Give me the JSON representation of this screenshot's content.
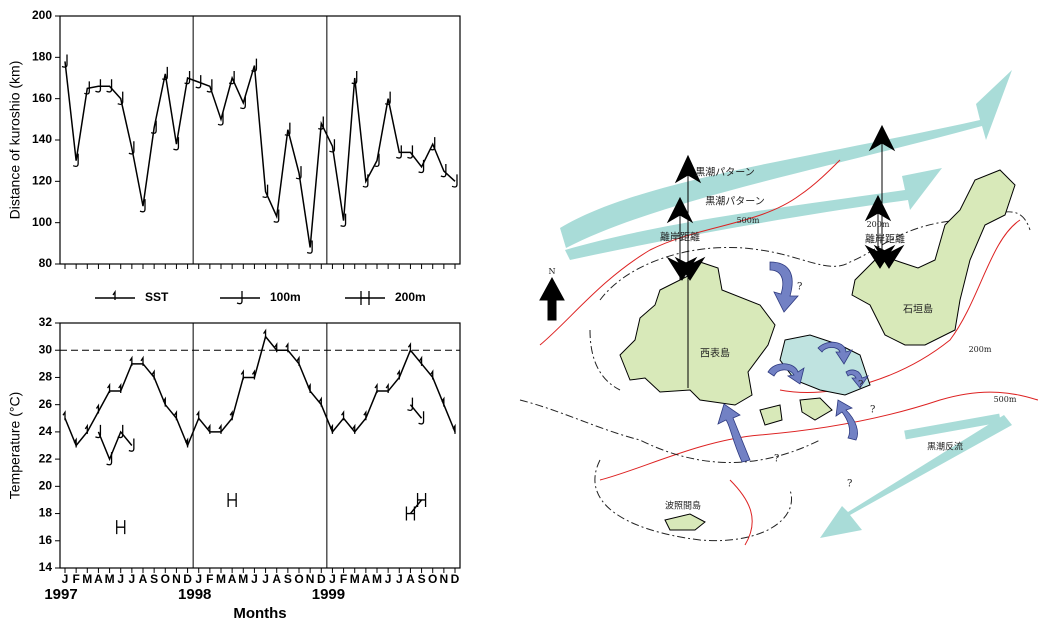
{
  "chart_data": [
    {
      "type": "line",
      "ylabel": "Distance of kuroshio (km)",
      "values": [
        178,
        130,
        165,
        166,
        166,
        160,
        136,
        108,
        146,
        172,
        138,
        170,
        168,
        166,
        150,
        170,
        158,
        176,
        115,
        103,
        145,
        124,
        88,
        148,
        137,
        101,
        170,
        120,
        130,
        160,
        134,
        134,
        127,
        138,
        125,
        120
      ],
      "marker": "J",
      "color": "#000000",
      "ylim": [
        80,
        200
      ],
      "yticks": [
        80,
        100,
        120,
        140,
        160,
        180,
        200
      ]
    },
    {
      "type": "line",
      "ylabel": "Temperature (°C)",
      "xlabel": "Months",
      "categories": [
        "J",
        "F",
        "M",
        "A",
        "M",
        "J",
        "J",
        "A",
        "S",
        "O",
        "N",
        "D",
        "J",
        "F",
        "M",
        "A",
        "M",
        "J",
        "J",
        "A",
        "S",
        "O",
        "N",
        "D",
        "J",
        "F",
        "M",
        "A",
        "M",
        "J",
        "J",
        "A",
        "S",
        "O",
        "N",
        "D"
      ],
      "year_labels": [
        "1997",
        "1998",
        "1999"
      ],
      "series": [
        {
          "name": "SST",
          "marker": "1",
          "color": "#000000",
          "values": [
            25,
            23,
            24,
            25.5,
            27,
            27,
            29,
            29,
            28,
            26,
            25,
            23,
            25,
            24,
            24,
            25,
            28,
            28,
            31,
            30,
            30,
            29,
            27,
            26,
            24,
            25,
            24,
            25,
            27,
            27,
            28,
            30,
            29,
            28,
            26,
            24
          ]
        },
        {
          "name": "100m",
          "marker": "J",
          "color": "#000000",
          "values": [
            null,
            null,
            null,
            24,
            22,
            24,
            23,
            null,
            null,
            null,
            null,
            null,
            null,
            null,
            null,
            null,
            null,
            null,
            null,
            null,
            null,
            null,
            null,
            null,
            null,
            null,
            null,
            null,
            null,
            null,
            null,
            26,
            25,
            null,
            null,
            null
          ]
        },
        {
          "name": "200m",
          "marker": "H",
          "color": "#000000",
          "values": [
            null,
            null,
            null,
            null,
            null,
            17,
            null,
            null,
            null,
            null,
            null,
            null,
            null,
            null,
            null,
            19,
            null,
            null,
            null,
            null,
            null,
            null,
            null,
            null,
            null,
            null,
            null,
            null,
            null,
            null,
            null,
            18,
            19,
            null,
            null,
            null
          ]
        }
      ],
      "ylim": [
        14,
        32
      ],
      "yticks": [
        14,
        16,
        18,
        20,
        22,
        24,
        26,
        28,
        30,
        32
      ],
      "reference_line": 30
    }
  ],
  "map": {
    "labels": [
      "黒潮パターン",
      "黒潮パターン",
      "離岸距離",
      "離岸距離",
      "500m",
      "200m",
      "N",
      "西表島",
      "石垣島",
      "200m",
      "500m",
      "黒潮反流",
      "波照間島",
      "?",
      "?",
      "?",
      "?",
      "?"
    ]
  }
}
